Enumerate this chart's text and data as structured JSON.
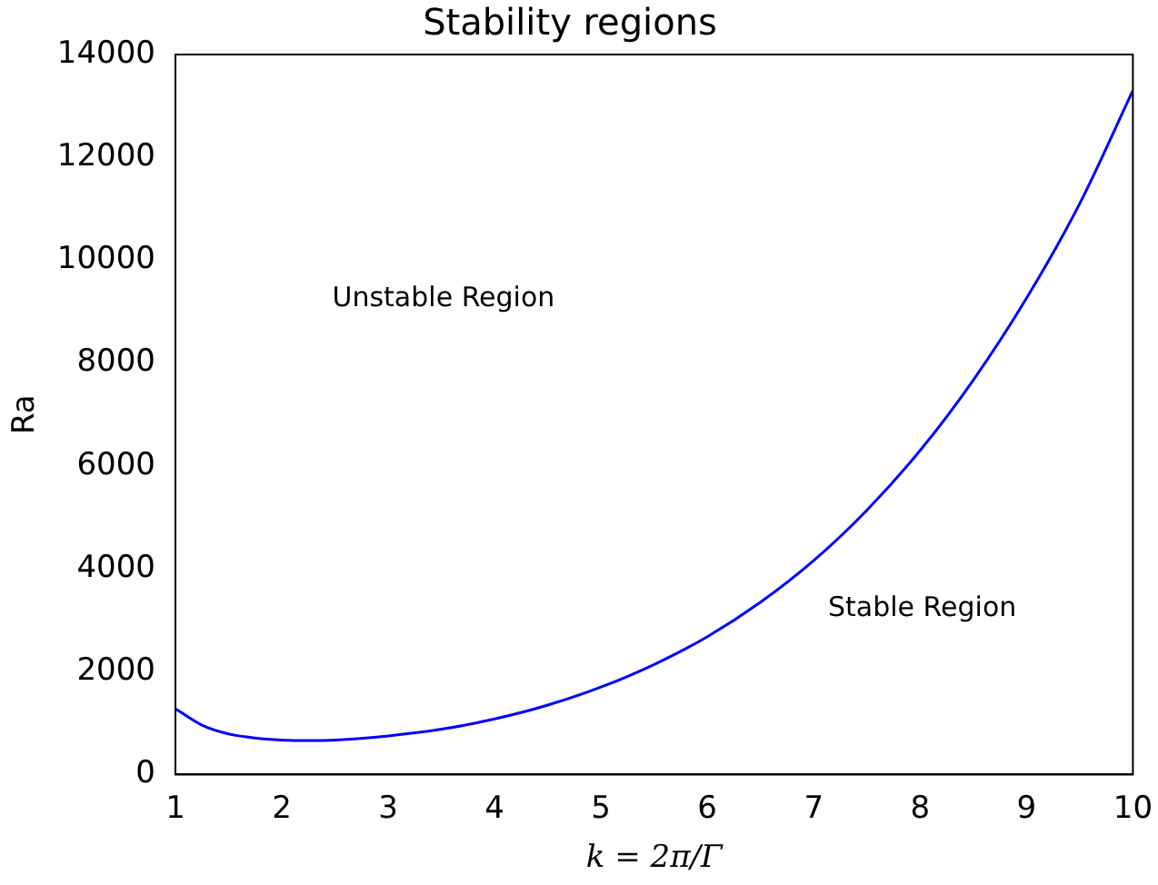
{
  "chart_data": {
    "type": "line",
    "title": "Stability regions",
    "xlabel": "k = 2π/Γ",
    "ylabel": "Ra",
    "x": [
      1,
      1.25,
      1.5,
      1.75,
      2,
      2.25,
      2.5,
      3,
      3.5,
      4,
      4.5,
      5,
      5.5,
      6,
      6.5,
      7,
      7.5,
      8,
      8.5,
      9,
      9.5,
      10
    ],
    "series": [
      {
        "color": "#0000ff",
        "values": [
          1280,
          960,
          790,
          710,
          670,
          660,
          670,
          750,
          880,
          1080,
          1350,
          1700,
          2140,
          2680,
          3350,
          4160,
          5140,
          6300,
          7670,
          9260,
          11100,
          13300
        ]
      }
    ],
    "xlim": [
      1,
      10
    ],
    "xticks": [
      1,
      2,
      3,
      4,
      5,
      6,
      7,
      8,
      9,
      10
    ],
    "ylim": [
      0,
      14000
    ],
    "yticks": [
      0,
      2000,
      4000,
      6000,
      8000,
      10000,
      12000,
      14000
    ],
    "annotations": [
      "Unstable Region",
      "Stable Region"
    ],
    "grid": false,
    "legend": false,
    "marker": "none",
    "line_style": "solid"
  }
}
